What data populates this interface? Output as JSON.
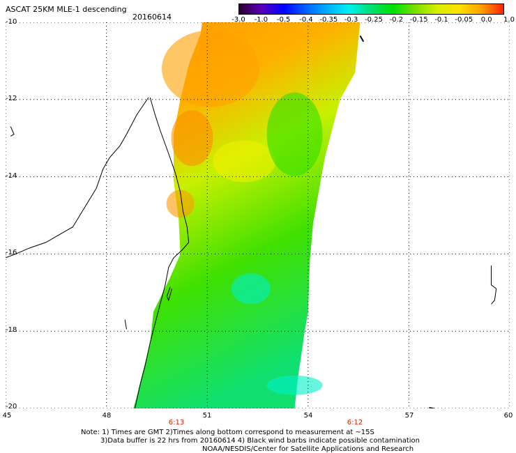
{
  "header": {
    "title": "ASCAT 25KM MLE-1 descending",
    "date": "20160614"
  },
  "colorbar": {
    "labels": [
      "-3.0",
      "-1.0",
      "-0.5",
      "-0.4",
      "-0.35",
      "-0.3",
      "-0.25",
      "-0.2",
      "-0.15",
      "-0.1",
      "-0.05",
      "0.0",
      "1.0"
    ],
    "colors": [
      "#2a0030",
      "#5b00b8",
      "#0000ff",
      "#005fff",
      "#00b0ff",
      "#00f0f0",
      "#00e070",
      "#00e000",
      "#7be000",
      "#d8f000",
      "#ffe000",
      "#ffa000",
      "#ff2000"
    ]
  },
  "axes": {
    "x_ticks": [
      "45",
      "48",
      "51",
      "54",
      "57",
      "60"
    ],
    "y_ticks": [
      "-10",
      "-12",
      "-14",
      "-16",
      "-18",
      "-20"
    ],
    "x_range": [
      45,
      60
    ],
    "y_range": [
      -20,
      -10
    ]
  },
  "times": [
    "6:13",
    "6:12"
  ],
  "notes": {
    "line1": "Note: 1) Times are GMT 2)Times along bottom correspond to measurement at ~15S",
    "line2": "3)Data buffer is 22 hrs from 20160614 4) Black wind barbs indicate possible contamination",
    "line3": "NOAA/NESDIS/Center for Satellite Applications and Research"
  }
}
